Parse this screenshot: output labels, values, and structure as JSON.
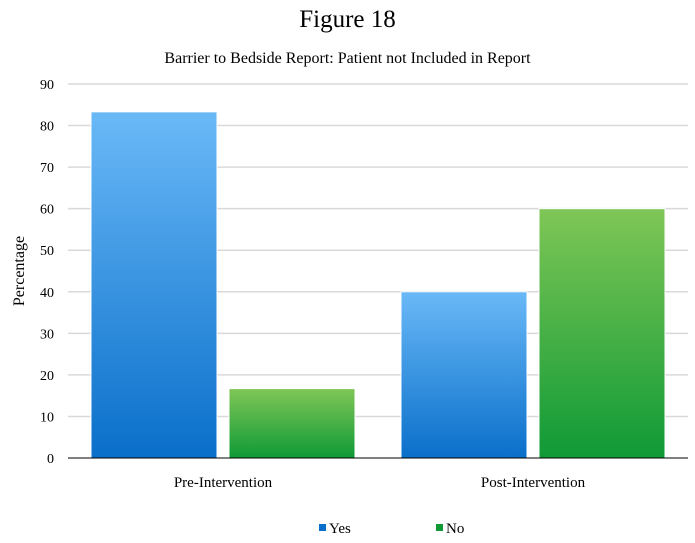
{
  "figure_title": "Figure 18",
  "chart_data": {
    "type": "bar",
    "title": "Barrier to Bedside Report: Patient not Included in Report",
    "xlabel": "",
    "ylabel": "Percentage",
    "categories": [
      "Pre-Intervention",
      "Post-Intervention"
    ],
    "series": [
      {
        "name": "Yes",
        "values": [
          83.3,
          40
        ]
      },
      {
        "name": "No",
        "values": [
          16.7,
          60
        ]
      }
    ],
    "ylim": [
      0,
      90
    ],
    "yticks": [
      0,
      10,
      20,
      30,
      40,
      50,
      60,
      70,
      80,
      90
    ],
    "grid": true,
    "legend": "bottom",
    "colors": {
      "Yes": {
        "top": "#6ab9f7",
        "bottom": "#0a6fca"
      },
      "No": {
        "top": "#7fc656",
        "bottom": "#0f9a36"
      }
    }
  }
}
